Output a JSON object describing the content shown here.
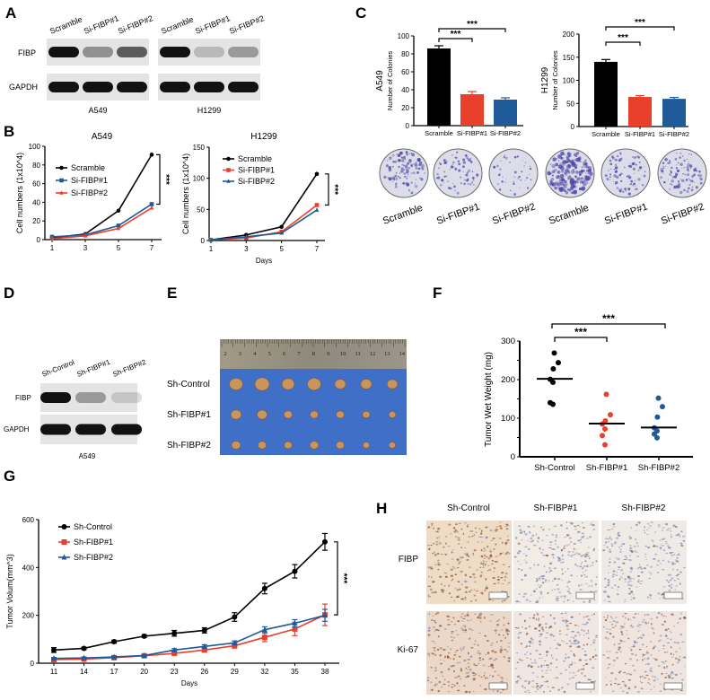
{
  "figure": {
    "panel_labels": [
      "A",
      "B",
      "C",
      "D",
      "E",
      "F",
      "G",
      "H"
    ],
    "panel_a": {
      "lanes": [
        "Scramble",
        "Si-FIBP#1",
        "Si-FIBP#2"
      ],
      "rows": [
        "FIBP",
        "GAPDH"
      ],
      "cell_lines": [
        "A549",
        "H1299"
      ],
      "fibp_band_intensity": {
        "A549": [
          1.0,
          0.4,
          0.65
        ],
        "H1299": [
          1.0,
          0.2,
          0.35
        ]
      }
    },
    "panel_c_plates": {
      "labels": [
        "Scramble",
        "Si-FIBP#1",
        "Si-FIBP#2",
        "Scramble",
        "Si-FIBP#1",
        "Si-FIBP#2"
      ]
    },
    "panel_d": {
      "lanes": [
        "Sh-Control",
        "Sh-FIBP#1",
        "Sh-FIBP#2"
      ],
      "rows": [
        "FIBP",
        "GAPDH"
      ],
      "cell_line": "A549",
      "fibp_band_intensity": [
        1.0,
        0.35,
        0.15
      ]
    },
    "panel_e": {
      "rows": [
        "Sh-Control",
        "Sh-FIBP#1",
        "Sh-FIBP#2"
      ],
      "ruler_ticks": [
        "2",
        "3",
        "4",
        "5",
        "6",
        "7",
        "8",
        "9",
        "10",
        "11",
        "12",
        "13",
        "14"
      ]
    },
    "panel_h": {
      "columns": [
        "Sh-Control",
        "Sh-FIBP#1",
        "Sh-FIBP#2"
      ],
      "rows": [
        "FIBP",
        "Ki-67"
      ]
    }
  },
  "chart_data": [
    {
      "id": "B-A549",
      "type": "line",
      "title": "A549",
      "xlabel": "",
      "ylabel": "Cell numbers (1x10^4)",
      "x": [
        1,
        3,
        5,
        7
      ],
      "xlim": [
        1,
        7
      ],
      "ylim": [
        0,
        100
      ],
      "yticks": [
        0,
        20,
        40,
        60,
        80,
        100
      ],
      "legend": "top-left",
      "significance": "***",
      "series": [
        {
          "name": "Scramble",
          "color": "#000000",
          "marker": "circle",
          "values": [
            2,
            6,
            31,
            91
          ]
        },
        {
          "name": "Si-FIBP#1",
          "color": "#1f5a99",
          "marker": "square",
          "values": [
            3,
            5,
            15,
            38
          ]
        },
        {
          "name": "Si-FIBP#2",
          "color": "#e8402a",
          "marker": "triangle",
          "values": [
            1,
            4,
            12,
            34
          ]
        }
      ]
    },
    {
      "id": "B-H1299",
      "type": "line",
      "title": "H1299",
      "xlabel": "Days",
      "ylabel": "Cell numbers (1x10^4)",
      "x": [
        1,
        3,
        5,
        7
      ],
      "xlim": [
        1,
        7
      ],
      "ylim": [
        0,
        150
      ],
      "yticks": [
        0,
        50,
        100,
        150
      ],
      "legend": "top-left",
      "significance": "***",
      "series": [
        {
          "name": "Scramble",
          "color": "#000000",
          "marker": "circle",
          "values": [
            1,
            9,
            22,
            107
          ]
        },
        {
          "name": "Si-FIBP#1",
          "color": "#e8402a",
          "marker": "square",
          "values": [
            1,
            4,
            14,
            57
          ]
        },
        {
          "name": "Si-FIBP#2",
          "color": "#1f5a99",
          "marker": "triangle",
          "values": [
            1,
            6,
            12,
            49
          ]
        }
      ]
    },
    {
      "id": "C-A549",
      "type": "bar",
      "side_label": "A549",
      "ylabel": "Number of Colonies",
      "categories": [
        "Scramble",
        "Si-FIBP#1",
        "Si-FIBP#2"
      ],
      "values": [
        86,
        35,
        29
      ],
      "errors": [
        3,
        3,
        2
      ],
      "colors": [
        "#000000",
        "#e8402a",
        "#1f5a99"
      ],
      "ylim": [
        0,
        100
      ],
      "yticks": [
        0,
        20,
        40,
        60,
        80,
        100
      ],
      "significance": [
        {
          "from": "Scramble",
          "to": "Si-FIBP#1",
          "label": "***"
        },
        {
          "from": "Scramble",
          "to": "Si-FIBP#2",
          "label": "***"
        }
      ]
    },
    {
      "id": "C-H1299",
      "type": "bar",
      "side_label": "H1299",
      "ylabel": "Number of Colonies",
      "categories": [
        "Scramble",
        "Si-FIBP#1",
        "Si-FIBP#2"
      ],
      "values": [
        140,
        64,
        60
      ],
      "errors": [
        5,
        3,
        3
      ],
      "colors": [
        "#000000",
        "#e8402a",
        "#1f5a99"
      ],
      "ylim": [
        0,
        200
      ],
      "yticks": [
        0,
        50,
        100,
        150,
        200
      ],
      "significance": [
        {
          "from": "Scramble",
          "to": "Si-FIBP#1",
          "label": "***"
        },
        {
          "from": "Scramble",
          "to": "Si-FIBP#2",
          "label": "***"
        }
      ]
    },
    {
      "id": "F",
      "type": "scatter",
      "ylabel": "Tumor Wet Weight (mg)",
      "categories": [
        "Sh-Control",
        "Sh-FIBP#1",
        "Sh-FIBP#2"
      ],
      "colors": [
        "#000000",
        "#e8402a",
        "#1f5a99"
      ],
      "points": [
        [
          269,
          244,
          228,
          201,
          193,
          140,
          136
        ],
        [
          162,
          109,
          93,
          85,
          72,
          55,
          31
        ],
        [
          152,
          130,
          103,
          75,
          67,
          59,
          49
        ]
      ],
      "medians": [
        202,
        86,
        76
      ],
      "ylim": [
        0,
        300
      ],
      "yticks": [
        0,
        100,
        200,
        300
      ],
      "significance": [
        {
          "from": "Sh-Control",
          "to": "Sh-FIBP#1",
          "label": "***"
        },
        {
          "from": "Sh-Control",
          "to": "Sh-FIBP#2",
          "label": "***"
        }
      ]
    },
    {
      "id": "G",
      "type": "line",
      "xlabel": "Days",
      "ylabel": "Tumor Volum(mm^3)",
      "x": [
        11,
        14,
        17,
        20,
        23,
        26,
        29,
        32,
        35,
        38
      ],
      "ylim": [
        0,
        600
      ],
      "yticks": [
        0,
        200,
        400,
        600
      ],
      "legend": "top-left",
      "significance": "***",
      "series": [
        {
          "name": "Sh-Control",
          "color": "#000000",
          "marker": "circle",
          "values": [
            55,
            62,
            90,
            113,
            125,
            137,
            193,
            312,
            384,
            507
          ],
          "errors": [
            10,
            5,
            6,
            6,
            12,
            11,
            18,
            22,
            28,
            35
          ]
        },
        {
          "name": "Sh-FIBP#1",
          "color": "#e8402a",
          "marker": "square",
          "values": [
            15,
            17,
            23,
            31,
            41,
            55,
            73,
            108,
            143,
            202
          ],
          "errors": [
            4,
            4,
            4,
            4,
            6,
            7,
            10,
            18,
            28,
            45
          ]
        },
        {
          "name": "Sh-FIBP#2",
          "color": "#1f5a99",
          "marker": "triangle",
          "values": [
            20,
            22,
            26,
            32,
            55,
            70,
            85,
            140,
            167,
            200
          ],
          "errors": [
            4,
            4,
            4,
            4,
            6,
            7,
            8,
            12,
            15,
            25
          ]
        }
      ]
    }
  ]
}
